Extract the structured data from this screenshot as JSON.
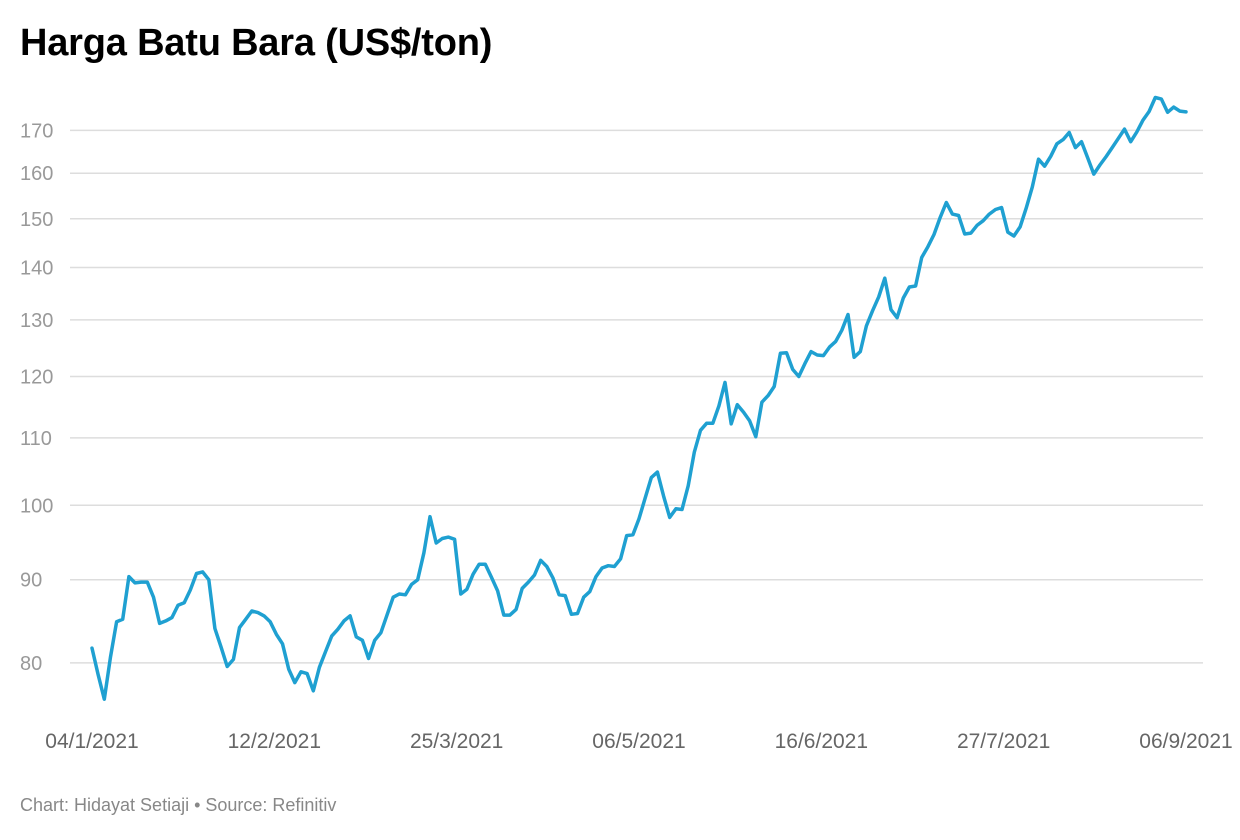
{
  "chart_data": {
    "type": "line",
    "title": "Harga Batu Bara (US$/ton)",
    "xlabel": "",
    "ylabel": "",
    "y_scale": "log",
    "ylim": [
      74,
      180
    ],
    "y_ticks": [
      80,
      90,
      100,
      110,
      120,
      130,
      140,
      150,
      160,
      170
    ],
    "x_tick_labels": [
      "04/1/2021",
      "12/2/2021",
      "25/3/2021",
      "06/5/2021",
      "16/6/2021",
      "27/7/2021",
      "06/9/2021"
    ],
    "grid": true,
    "legend": false,
    "line_color": "#1fa0d1",
    "series": [
      {
        "values": [
          81.7,
          78.7,
          76.0,
          80.6,
          84.8,
          85.1,
          90.4,
          89.6,
          89.7,
          89.7,
          87.8,
          84.6,
          84.9,
          85.3,
          86.8,
          87.1,
          88.7,
          90.8,
          91.0,
          90.0,
          84.0,
          81.8,
          79.6,
          80.4,
          84.1,
          85.1,
          86.1,
          85.9,
          85.5,
          84.8,
          83.3,
          82.2,
          79.3,
          77.8,
          79.0,
          78.8,
          76.9,
          79.5,
          81.3,
          83.1,
          83.9,
          84.9,
          85.5,
          83.0,
          82.6,
          80.5,
          82.6,
          83.5,
          85.6,
          87.8,
          88.2,
          88.1,
          89.4,
          90.0,
          93.5,
          98.4,
          94.8,
          95.4,
          95.6,
          95.3,
          88.2,
          88.8,
          90.7,
          92.0,
          92.0,
          90.3,
          88.6,
          85.6,
          85.6,
          86.3,
          88.9,
          89.7,
          90.6,
          92.5,
          91.7,
          90.2,
          88.1,
          88.0,
          85.7,
          85.8,
          87.8,
          88.5,
          90.4,
          91.5,
          91.8,
          91.7,
          92.7,
          95.8,
          95.9,
          98.1,
          101.0,
          104.0,
          104.8,
          101.3,
          98.3,
          99.5,
          99.4,
          102.8,
          107.8,
          111.2,
          112.3,
          112.3,
          115.1,
          119.0,
          112.2,
          115.3,
          114.1,
          112.7,
          110.2,
          115.7,
          116.8,
          118.3,
          124.0,
          124.1,
          121.2,
          120.0,
          122.2,
          124.3,
          123.7,
          123.6,
          125.1,
          126.1,
          128.1,
          131.0,
          123.3,
          124.3,
          128.9,
          131.7,
          134.3,
          137.9,
          131.9,
          130.4,
          134.1,
          136.2,
          136.4,
          142.0,
          144.2,
          146.7,
          150.3,
          153.5,
          151.0,
          150.7,
          146.8,
          147.0,
          148.6,
          149.6,
          151.0,
          152.0,
          152.4,
          147.2,
          146.4,
          148.3,
          152.3,
          156.9,
          163.2,
          161.6,
          163.9,
          166.8,
          167.8,
          169.5,
          165.9,
          167.3,
          163.5,
          159.8,
          161.9,
          163.8,
          165.9,
          168.1,
          170.3,
          167.3,
          169.6,
          172.5,
          174.6,
          178.1,
          177.7,
          174.4,
          175.7,
          174.7,
          174.5
        ]
      }
    ]
  },
  "footer": {
    "credit": "Chart: Hidayat Setiaji • Source: Refinitiv"
  }
}
